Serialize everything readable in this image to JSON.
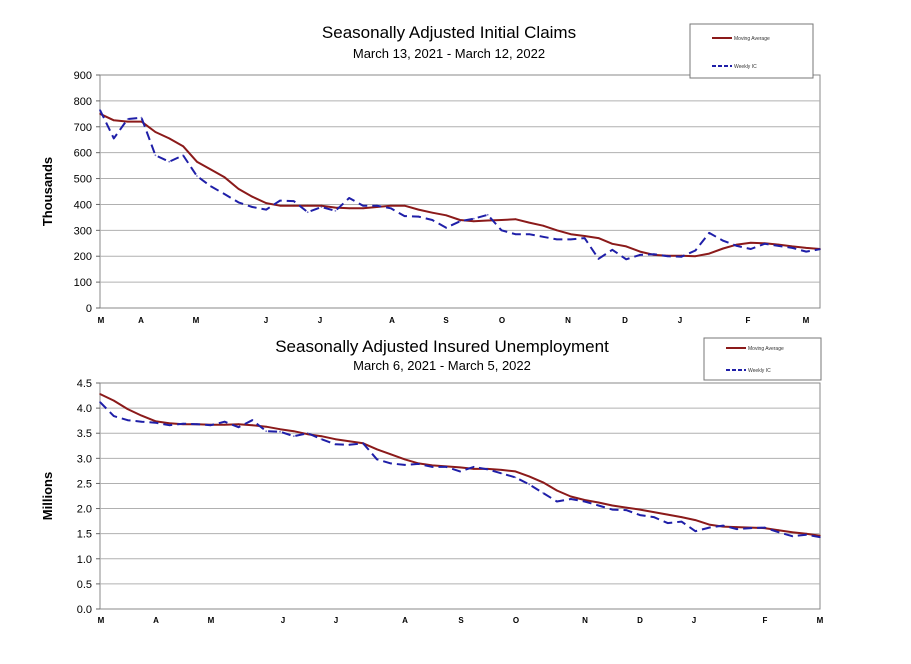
{
  "chart_data": [
    {
      "type": "line",
      "title": "Seasonally Adjusted Initial Claims",
      "subtitle": "March 13, 2021 - March 12, 2022",
      "ylabel": "Thousands",
      "xlabel": "",
      "ylim": [
        0,
        900
      ],
      "yticks": [
        "0",
        "100",
        "200",
        "300",
        "400",
        "500",
        "600",
        "700",
        "800",
        "900"
      ],
      "xtick_labels": [
        "M",
        "A",
        "M",
        "J",
        "J",
        "A",
        "S",
        "O",
        "N",
        "D",
        "J",
        "F",
        "M"
      ],
      "grid": true,
      "legend": "top-right",
      "x": [
        "2021-03-13",
        "2021-03-20",
        "2021-03-27",
        "2021-04-03",
        "2021-04-10",
        "2021-04-17",
        "2021-04-24",
        "2021-05-01",
        "2021-05-08",
        "2021-05-15",
        "2021-05-22",
        "2021-05-29",
        "2021-06-05",
        "2021-06-12",
        "2021-06-19",
        "2021-06-26",
        "2021-07-03",
        "2021-07-10",
        "2021-07-17",
        "2021-07-24",
        "2021-07-31",
        "2021-08-07",
        "2021-08-14",
        "2021-08-21",
        "2021-08-28",
        "2021-09-04",
        "2021-09-11",
        "2021-09-18",
        "2021-09-25",
        "2021-10-02",
        "2021-10-09",
        "2021-10-16",
        "2021-10-23",
        "2021-10-30",
        "2021-11-06",
        "2021-11-13",
        "2021-11-20",
        "2021-11-27",
        "2021-12-04",
        "2021-12-11",
        "2021-12-18",
        "2021-12-25",
        "2022-01-01",
        "2022-01-08",
        "2022-01-15",
        "2022-01-22",
        "2022-01-29",
        "2022-02-05",
        "2022-02-12",
        "2022-02-19",
        "2022-02-26",
        "2022-03-05",
        "2022-03-12"
      ],
      "series": [
        {
          "name": "Moving Average",
          "color": "#8b1a1a",
          "dash": "solid",
          "values": [
            750,
            725,
            720,
            720,
            680,
            655,
            625,
            565,
            535,
            505,
            460,
            430,
            405,
            395,
            395,
            395,
            395,
            388,
            385,
            385,
            390,
            395,
            395,
            380,
            368,
            358,
            340,
            335,
            338,
            340,
            343,
            330,
            318,
            300,
            285,
            278,
            270,
            248,
            238,
            218,
            205,
            202,
            202,
            200,
            210,
            230,
            245,
            252,
            250,
            245,
            238,
            232,
            228
          ]
        },
        {
          "name": "Weekly IC",
          "color": "#1f1fa8",
          "dash": "dashed",
          "values": [
            765,
            655,
            730,
            735,
            590,
            565,
            590,
            510,
            470,
            440,
            408,
            390,
            380,
            415,
            413,
            370,
            390,
            375,
            425,
            395,
            395,
            385,
            355,
            353,
            340,
            310,
            335,
            345,
            360,
            300,
            285,
            285,
            275,
            265,
            265,
            270,
            190,
            225,
            188,
            205,
            208,
            200,
            198,
            222,
            290,
            260,
            240,
            228,
            248,
            240,
            232,
            218,
            227
          ]
        }
      ]
    },
    {
      "type": "line",
      "title": "Seasonally Adjusted Insured Unemployment",
      "subtitle": "March 6, 2021 - March 5, 2022",
      "ylabel": "Millions",
      "xlabel": "",
      "ylim": [
        0.0,
        4.5
      ],
      "yticks": [
        "0.0",
        "0.5",
        "1.0",
        "1.5",
        "2.0",
        "2.5",
        "3.0",
        "3.5",
        "4.0",
        "4.5"
      ],
      "xtick_labels": [
        "M",
        "A",
        "M",
        "J",
        "J",
        "A",
        "S",
        "O",
        "N",
        "D",
        "J",
        "F",
        "M"
      ],
      "grid": true,
      "legend": "top-right",
      "x": [
        "2021-03-06",
        "2021-03-13",
        "2021-03-20",
        "2021-03-27",
        "2021-04-03",
        "2021-04-10",
        "2021-04-17",
        "2021-04-24",
        "2021-05-01",
        "2021-05-08",
        "2021-05-15",
        "2021-05-22",
        "2021-05-29",
        "2021-06-05",
        "2021-06-12",
        "2021-06-19",
        "2021-06-26",
        "2021-07-03",
        "2021-07-10",
        "2021-07-17",
        "2021-07-24",
        "2021-07-31",
        "2021-08-07",
        "2021-08-14",
        "2021-08-21",
        "2021-08-28",
        "2021-09-04",
        "2021-09-11",
        "2021-09-18",
        "2021-09-25",
        "2021-10-02",
        "2021-10-09",
        "2021-10-16",
        "2021-10-23",
        "2021-10-30",
        "2021-11-06",
        "2021-11-13",
        "2021-11-20",
        "2021-11-27",
        "2021-12-04",
        "2021-12-11",
        "2021-12-18",
        "2021-12-25",
        "2022-01-01",
        "2022-01-08",
        "2022-01-15",
        "2022-01-22",
        "2022-01-29",
        "2022-02-05",
        "2022-02-12",
        "2022-02-19",
        "2022-02-26",
        "2022-03-05"
      ],
      "series": [
        {
          "name": "Moving Average",
          "color": "#8b1a1a",
          "dash": "solid",
          "values": [
            4.28,
            4.15,
            3.98,
            3.85,
            3.74,
            3.7,
            3.68,
            3.68,
            3.67,
            3.67,
            3.68,
            3.66,
            3.63,
            3.58,
            3.54,
            3.48,
            3.44,
            3.38,
            3.34,
            3.3,
            3.18,
            3.08,
            2.98,
            2.9,
            2.86,
            2.84,
            2.82,
            2.79,
            2.79,
            2.77,
            2.74,
            2.64,
            2.52,
            2.36,
            2.24,
            2.17,
            2.12,
            2.06,
            2.02,
            1.98,
            1.93,
            1.88,
            1.83,
            1.77,
            1.68,
            1.64,
            1.63,
            1.62,
            1.61,
            1.57,
            1.53,
            1.5,
            1.46
          ]
        },
        {
          "name": "Weekly IC",
          "color": "#1f1fa8",
          "dash": "dashed",
          "values": [
            4.12,
            3.84,
            3.76,
            3.73,
            3.71,
            3.66,
            3.69,
            3.68,
            3.66,
            3.73,
            3.62,
            3.76,
            3.54,
            3.53,
            3.44,
            3.5,
            3.38,
            3.28,
            3.27,
            3.3,
            2.98,
            2.9,
            2.87,
            2.89,
            2.83,
            2.83,
            2.74,
            2.83,
            2.78,
            2.7,
            2.62,
            2.48,
            2.31,
            2.14,
            2.19,
            2.14,
            2.06,
            1.98,
            1.97,
            1.87,
            1.83,
            1.71,
            1.74,
            1.55,
            1.62,
            1.66,
            1.59,
            1.61,
            1.62,
            1.53,
            1.45,
            1.48,
            1.43
          ]
        }
      ]
    }
  ]
}
